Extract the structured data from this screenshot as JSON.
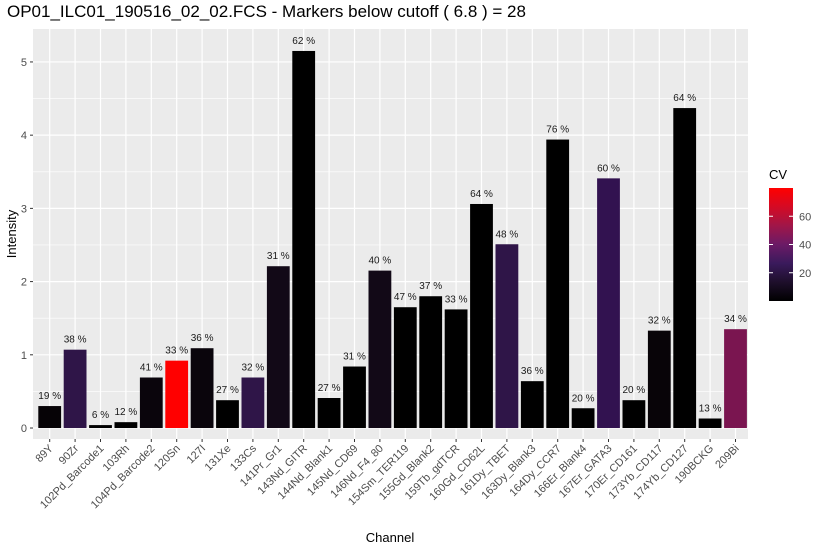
{
  "chart_data": {
    "type": "bar",
    "title": "OP01_ILC01_190516_02_02.FCS - Markers below cutoff ( 6.8 ) = 28",
    "xlabel": "Channel",
    "ylabel": "Intensity",
    "ylim": [
      -0.15,
      5.45
    ],
    "y_ticks": [
      0,
      1,
      2,
      3,
      4,
      5
    ],
    "grid": true,
    "categories": [
      "89Y",
      "90Zr",
      "102Pd_Barcode1",
      "103Rh",
      "104Pd_Barcode2",
      "120Sn",
      "127I",
      "131Xe",
      "133Cs",
      "141Pr_Gr1",
      "143Nd_GITR",
      "144Nd_Blank1",
      "145Nd_CD69",
      "146Nd_F4_80",
      "154Sm_TER119",
      "155Gd_Blank2",
      "159Tb_gdTCR",
      "160Gd_CD62L",
      "161Dy_TBET",
      "163Dy_Blank3",
      "164Dy_CCR7",
      "166Er_Blank4",
      "167Er_GATA3",
      "170Er_CD161",
      "173Yb_CD117",
      "174Yb_CD127",
      "190BCKG",
      "209Bi"
    ],
    "values": [
      0.3,
      1.07,
      0.04,
      0.08,
      0.69,
      0.92,
      1.09,
      0.38,
      0.69,
      2.21,
      5.15,
      0.41,
      0.84,
      2.15,
      1.65,
      1.8,
      1.62,
      3.06,
      2.51,
      0.64,
      3.94,
      0.27,
      3.41,
      0.38,
      1.33,
      4.37,
      0.13,
      1.35
    ],
    "cv_values": [
      19,
      38,
      6,
      12,
      41,
      33,
      36,
      27,
      32,
      31,
      62,
      27,
      31,
      40,
      47,
      37,
      33,
      64,
      48,
      36,
      76,
      20,
      60,
      20,
      32,
      64,
      13,
      34
    ],
    "data_labels": [
      "19 %",
      "38 %",
      "6 %",
      "12 %",
      "41 %",
      "33 %",
      "36 %",
      "27 %",
      "32 %",
      "31 %",
      "62 %",
      "27 %",
      "31 %",
      "40 %",
      "47 %",
      "37 %",
      "33 %",
      "64 %",
      "48 %",
      "36 %",
      "76 %",
      "20 %",
      "60 %",
      "20 %",
      "32 %",
      "64 %",
      "13 %",
      "34 %"
    ],
    "bar_colors": [
      "#060306",
      "#2f1548",
      "#000000",
      "#000000",
      "#0a050c",
      "#ff0000",
      "#0a050c",
      "#000000",
      "#2f1548",
      "#120917",
      "#000000",
      "#000000",
      "#000000",
      "#120917",
      "#000000",
      "#000000",
      "#000000",
      "#000000",
      "#2f1548",
      "#000000",
      "#000000",
      "#000000",
      "#321250",
      "#000000",
      "#080408",
      "#000000",
      "#000000",
      "#7a1550"
    ],
    "legend": {
      "title": "CV",
      "placement": "right",
      "ticks": [
        20,
        40,
        60
      ],
      "range": [
        0,
        80
      ],
      "gradient": [
        "#000000",
        "#1e0f2b",
        "#3a1a5c",
        "#6b1a66",
        "#a01648",
        "#d40a24",
        "#ff0000"
      ]
    },
    "background": "#ebebeb",
    "grid_color": "#ffffff"
  }
}
